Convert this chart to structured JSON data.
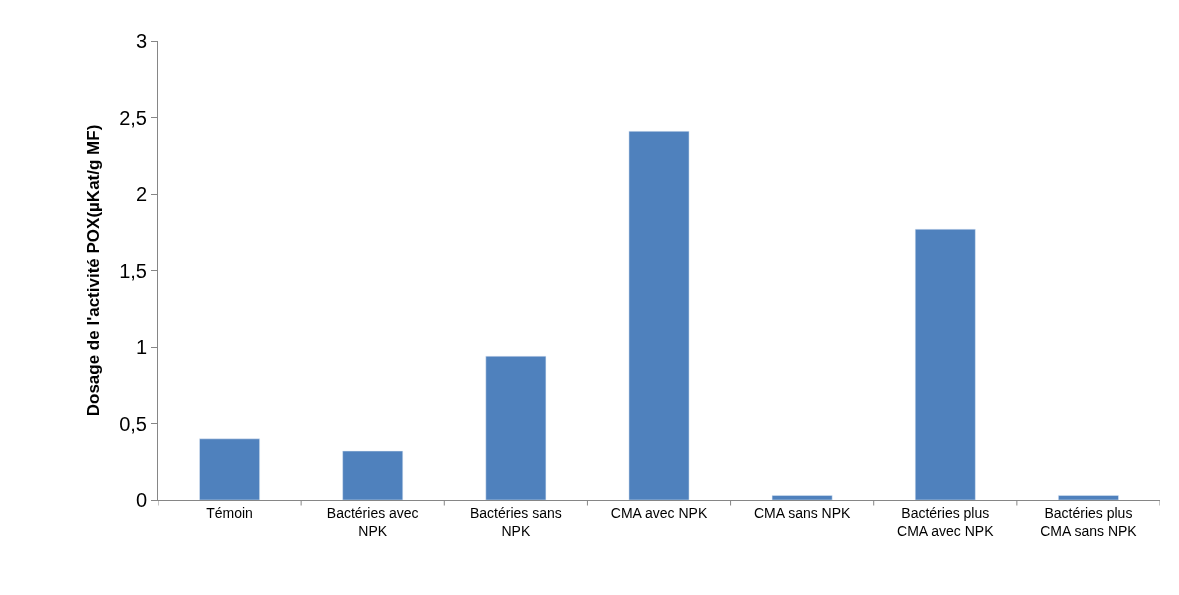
{
  "chart_data": {
    "type": "bar",
    "ylabel": "Dosage de l'activité POX(µKat/g MF)",
    "categories": [
      "Témoin",
      "Bactéries avec NPK",
      "Bactéries sans NPK",
      "CMA avec NPK",
      "CMA sans NPK",
      "Bactéries plus CMA avec NPK",
      "Bactéries plus CMA sans NPK"
    ],
    "values": [
      0.4,
      0.32,
      0.94,
      2.41,
      0.03,
      1.77,
      0.03
    ],
    "color": "#4f81bd",
    "ylim": [
      0,
      3
    ],
    "yticks": [
      {
        "value": 0,
        "label": "0"
      },
      {
        "value": 0.5,
        "label": "0,5"
      },
      {
        "value": 1,
        "label": "1"
      },
      {
        "value": 1.5,
        "label": "1,5"
      },
      {
        "value": 2,
        "label": "2"
      },
      {
        "value": 2.5,
        "label": "2,5"
      },
      {
        "value": 3,
        "label": "3"
      }
    ]
  }
}
